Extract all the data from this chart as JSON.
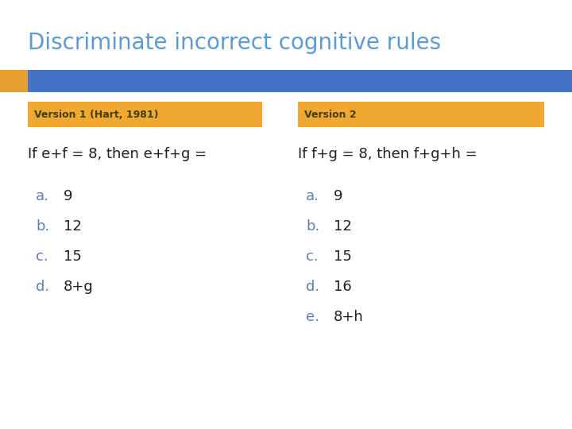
{
  "title": "Discriminate incorrect cognitive rules",
  "title_color": "#5B9BD5",
  "title_fontsize": 20,
  "bg_color": "#FFFFFF",
  "header_bar_color": "#4472C4",
  "header_bar_orange_color": "#E6A030",
  "col1_header": "Version 1 (Hart, 1981)",
  "col2_header": "Version 2",
  "col_header_bg": "#F0A830",
  "col_header_text_color": "#3F3F00",
  "col_header_fontsize": 9,
  "col1_question": "If e+f = 8, then e+f+g =",
  "col2_question": "If f+g = 8, then f+g+h =",
  "question_fontsize": 13,
  "question_color": "#1F1F1F",
  "answer_letter_color": "#5B7FBD",
  "answer_value_color": "#1F1F1F",
  "answer_fontsize": 13,
  "col1_answers": [
    "a.",
    "b.",
    "c.",
    "d."
  ],
  "col1_values": [
    "9",
    "12",
    "15",
    "8+g"
  ],
  "col2_answers": [
    "a.",
    "b.",
    "c.",
    "d.",
    "e."
  ],
  "col2_values": [
    "9",
    "12",
    "15",
    "16",
    "8+h"
  ]
}
